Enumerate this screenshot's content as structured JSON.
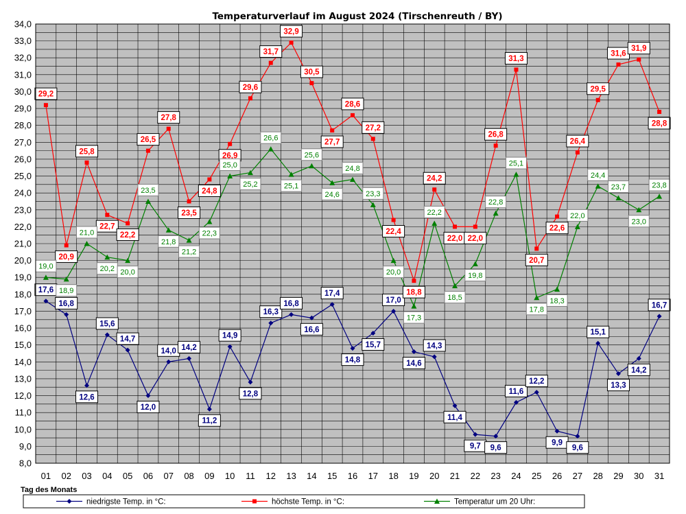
{
  "chart_data": {
    "type": "line",
    "title": "Temperaturverlauf im August 2024 (Tirschenreuth / BY)",
    "xlabel": "Tag des Monats",
    "ylabel": "",
    "ylim": [
      8.0,
      34.0
    ],
    "ytick_step": 0.5,
    "ytick_label_step": 1.0,
    "grid": true,
    "legend_position": "bottom",
    "categories": [
      "01",
      "02",
      "03",
      "04",
      "05",
      "06",
      "07",
      "08",
      "09",
      "10",
      "11",
      "12",
      "13",
      "14",
      "15",
      "16",
      "17",
      "18",
      "19",
      "20",
      "21",
      "22",
      "23",
      "24",
      "25",
      "26",
      "27",
      "28",
      "29",
      "30",
      "31"
    ],
    "series": [
      {
        "name": "niedrigste Temp. in °C:",
        "color": "#000080",
        "marker": "diamond",
        "values": [
          17.6,
          16.8,
          12.6,
          15.6,
          14.7,
          12.0,
          14.0,
          14.2,
          11.2,
          14.9,
          12.8,
          16.3,
          16.8,
          16.6,
          17.4,
          14.8,
          15.7,
          17.0,
          14.6,
          14.3,
          11.4,
          9.7,
          9.6,
          11.6,
          12.2,
          9.9,
          9.6,
          15.1,
          13.3,
          14.2,
          16.7
        ],
        "labels": [
          "17,6",
          "16,8",
          "12,6",
          "15,6",
          "14,7",
          "12,0",
          "14,0",
          "14,2",
          "11,2",
          "14,9",
          "12,8",
          "16,3",
          "16,8",
          "16,6",
          "17,4",
          "14,8",
          "15,7",
          "17,0",
          "14,6",
          "14,3",
          "11,4",
          "9,7",
          "9,6",
          "11,6",
          "12,2",
          "9,9",
          "9,6",
          "15,1",
          "13,3",
          "14,2",
          "16,7"
        ]
      },
      {
        "name": "höchste Temp. in °C:",
        "color": "#ff0000",
        "marker": "square",
        "values": [
          29.2,
          20.9,
          25.8,
          22.7,
          22.2,
          26.5,
          27.8,
          23.5,
          24.8,
          26.9,
          29.6,
          31.7,
          32.9,
          30.5,
          27.7,
          28.6,
          27.2,
          22.4,
          18.8,
          24.2,
          22.0,
          22.0,
          26.8,
          31.3,
          20.7,
          22.6,
          26.4,
          29.5,
          31.6,
          31.9,
          28.8
        ],
        "labels": [
          "29,2",
          "20,9",
          "25,8",
          "22,7",
          "22,2",
          "26,5",
          "27,8",
          "23,5",
          "24,8",
          "26,9",
          "29,6",
          "31,7",
          "32,9",
          "30,5",
          "27,7",
          "28,6",
          "27,2",
          "22,4",
          "18,8",
          "24,2",
          "22,0",
          "22,0",
          "26,8",
          "31,3",
          "20,7",
          "22,6",
          "26,4",
          "29,5",
          "31,6",
          "31,9",
          "28,8"
        ]
      },
      {
        "name": "Temperatur um 20 Uhr:",
        "color": "#008000",
        "marker": "triangle",
        "values": [
          19.0,
          18.9,
          21.0,
          20.2,
          20.0,
          23.5,
          21.8,
          21.2,
          22.3,
          25.0,
          25.2,
          26.6,
          25.1,
          25.6,
          24.6,
          24.8,
          23.3,
          20.0,
          17.3,
          22.2,
          18.5,
          19.8,
          22.8,
          25.1,
          17.8,
          18.3,
          22.0,
          24.4,
          23.7,
          23.0,
          23.8
        ],
        "labels": [
          "19,0",
          "18,9",
          "21,0",
          "20,2",
          "20,0",
          "23,5",
          "21,8",
          "21,2",
          "22,3",
          "25,0",
          "25,2",
          "26,6",
          "25,1",
          "25,6",
          "24,6",
          "24,8",
          "23,3",
          "20,0",
          "17,3",
          "22,2",
          "18,5",
          "19,8",
          "22,8",
          "25,1",
          "17,8",
          "18,3",
          "22,0",
          "24,4",
          "23,7",
          "23,0",
          "23,8"
        ]
      }
    ]
  }
}
